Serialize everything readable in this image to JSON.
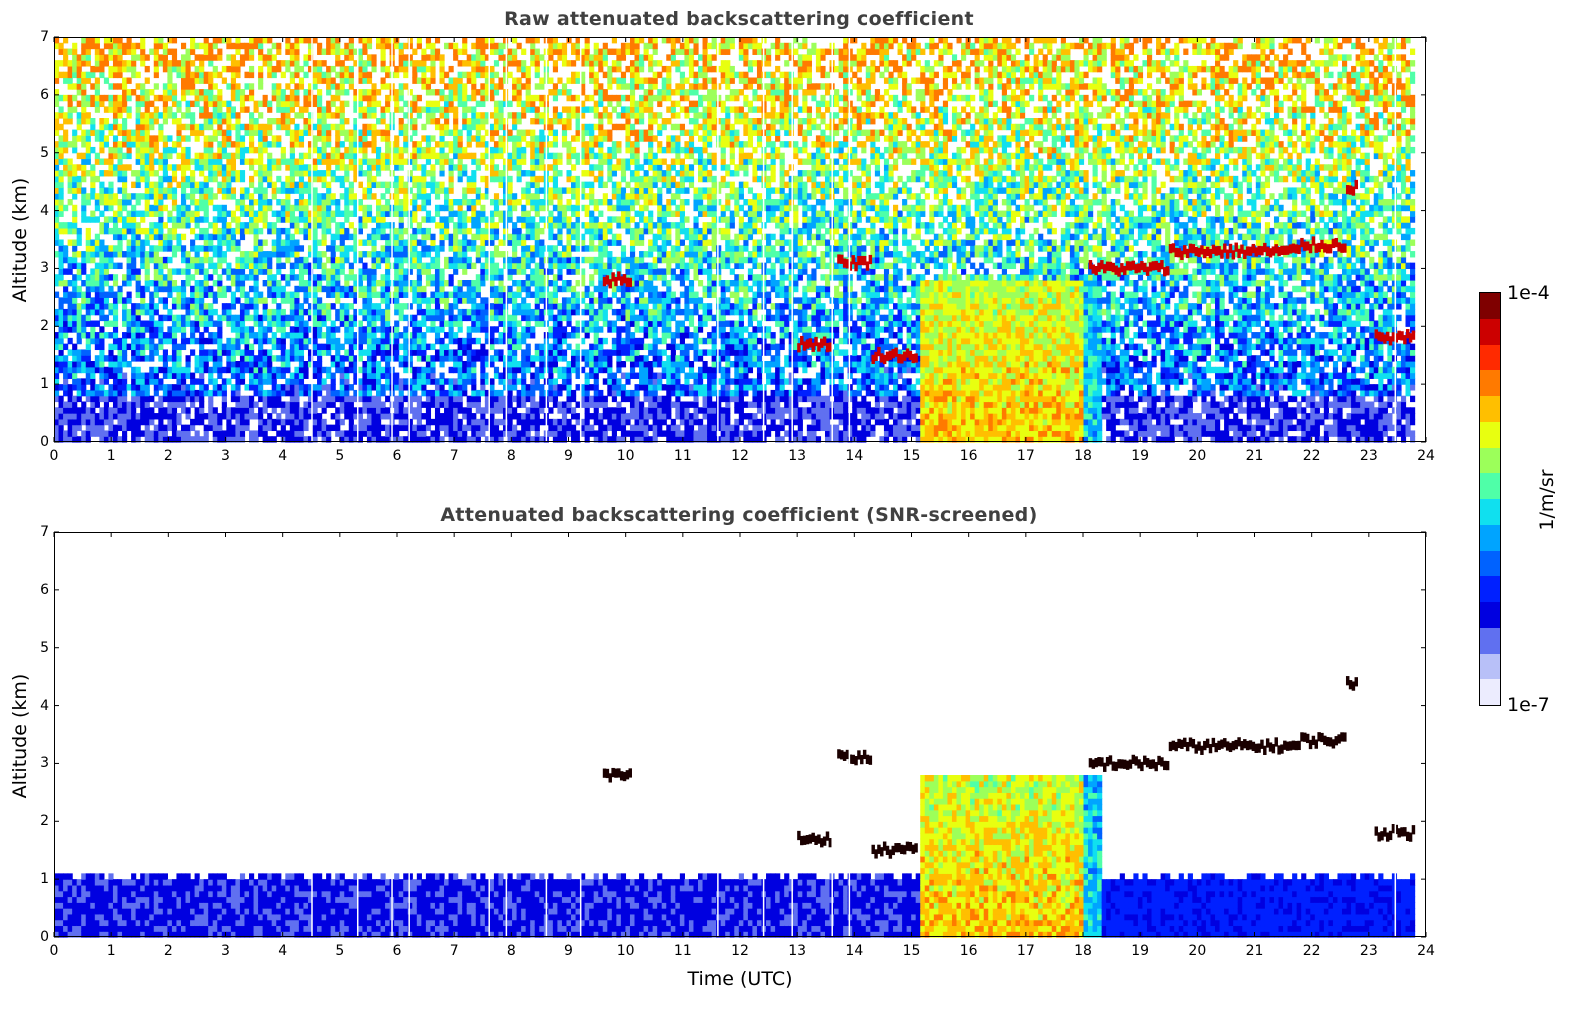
{
  "chart_data": [
    {
      "type": "heatmap",
      "title": "Raw attenuated backscattering coefficient",
      "xlabel": "",
      "ylabel": "Altitude (km)",
      "xlim": [
        0,
        24
      ],
      "ylim": [
        0,
        7
      ],
      "xticks": [
        "0",
        "1",
        "2",
        "3",
        "4",
        "5",
        "6",
        "7",
        "8",
        "9",
        "10",
        "11",
        "12",
        "13",
        "14",
        "15",
        "16",
        "17",
        "18",
        "19",
        "20",
        "21",
        "22",
        "23",
        "24"
      ],
      "yticks": [
        "0",
        "1",
        "2",
        "3",
        "4",
        "5",
        "6",
        "7"
      ],
      "data_end_hour": 23.8,
      "cloud_layers": [
        {
          "t": [
            9.6,
            10.1
          ],
          "alt": 2.8
        },
        {
          "t": [
            13.0,
            13.6
          ],
          "alt": 1.7
        },
        {
          "t": [
            13.7,
            14.3
          ],
          "alt": 3.1
        },
        {
          "t": [
            14.3,
            15.1
          ],
          "alt": 1.5
        },
        {
          "t": [
            18.1,
            19.5
          ],
          "alt": 3.0
        },
        {
          "t": [
            19.5,
            21.8
          ],
          "alt": 3.3
        },
        {
          "t": [
            21.8,
            22.6
          ],
          "alt": 3.4
        },
        {
          "t": [
            22.6,
            22.8
          ],
          "alt": 4.4
        },
        {
          "t": [
            23.1,
            23.8
          ],
          "alt": 1.8
        }
      ],
      "aerosol_layer": {
        "t": [
          15.1,
          18.3
        ],
        "top_alt": 2.8
      },
      "gaps_hours": [
        4.5,
        5.3,
        5.9,
        6.2,
        7.6,
        7.9,
        8.6,
        9.2,
        11.6,
        12.4,
        12.9,
        13.6,
        13.9,
        23.45
      ]
    },
    {
      "type": "heatmap",
      "title": "Attenuated backscattering coefficient (SNR-screened)",
      "xlabel": "Time (UTC)",
      "ylabel": "Altitude (km)",
      "xlim": [
        0,
        24
      ],
      "ylim": [
        0,
        7
      ],
      "xticks": [
        "0",
        "1",
        "2",
        "3",
        "4",
        "5",
        "6",
        "7",
        "8",
        "9",
        "10",
        "11",
        "12",
        "13",
        "14",
        "15",
        "16",
        "17",
        "18",
        "19",
        "20",
        "21",
        "22",
        "23",
        "24"
      ],
      "yticks": [
        "0",
        "1",
        "2",
        "3",
        "4",
        "5",
        "6",
        "7"
      ],
      "boundary_layer_top_alt": 1.0
    }
  ],
  "colorbar": {
    "min_label": "1e-7",
    "max_label": "1e-4",
    "unit": "1/m/sr",
    "colors": [
      "#7f0000",
      "#cc0000",
      "#ff2a00",
      "#ff7a00",
      "#ffbf00",
      "#e8ff10",
      "#9cff5a",
      "#4fffa8",
      "#10e0ef",
      "#00a4ff",
      "#0062ff",
      "#0020ff",
      "#0000e0",
      "#6070f0",
      "#b8c0f8",
      "#ececfe"
    ]
  }
}
